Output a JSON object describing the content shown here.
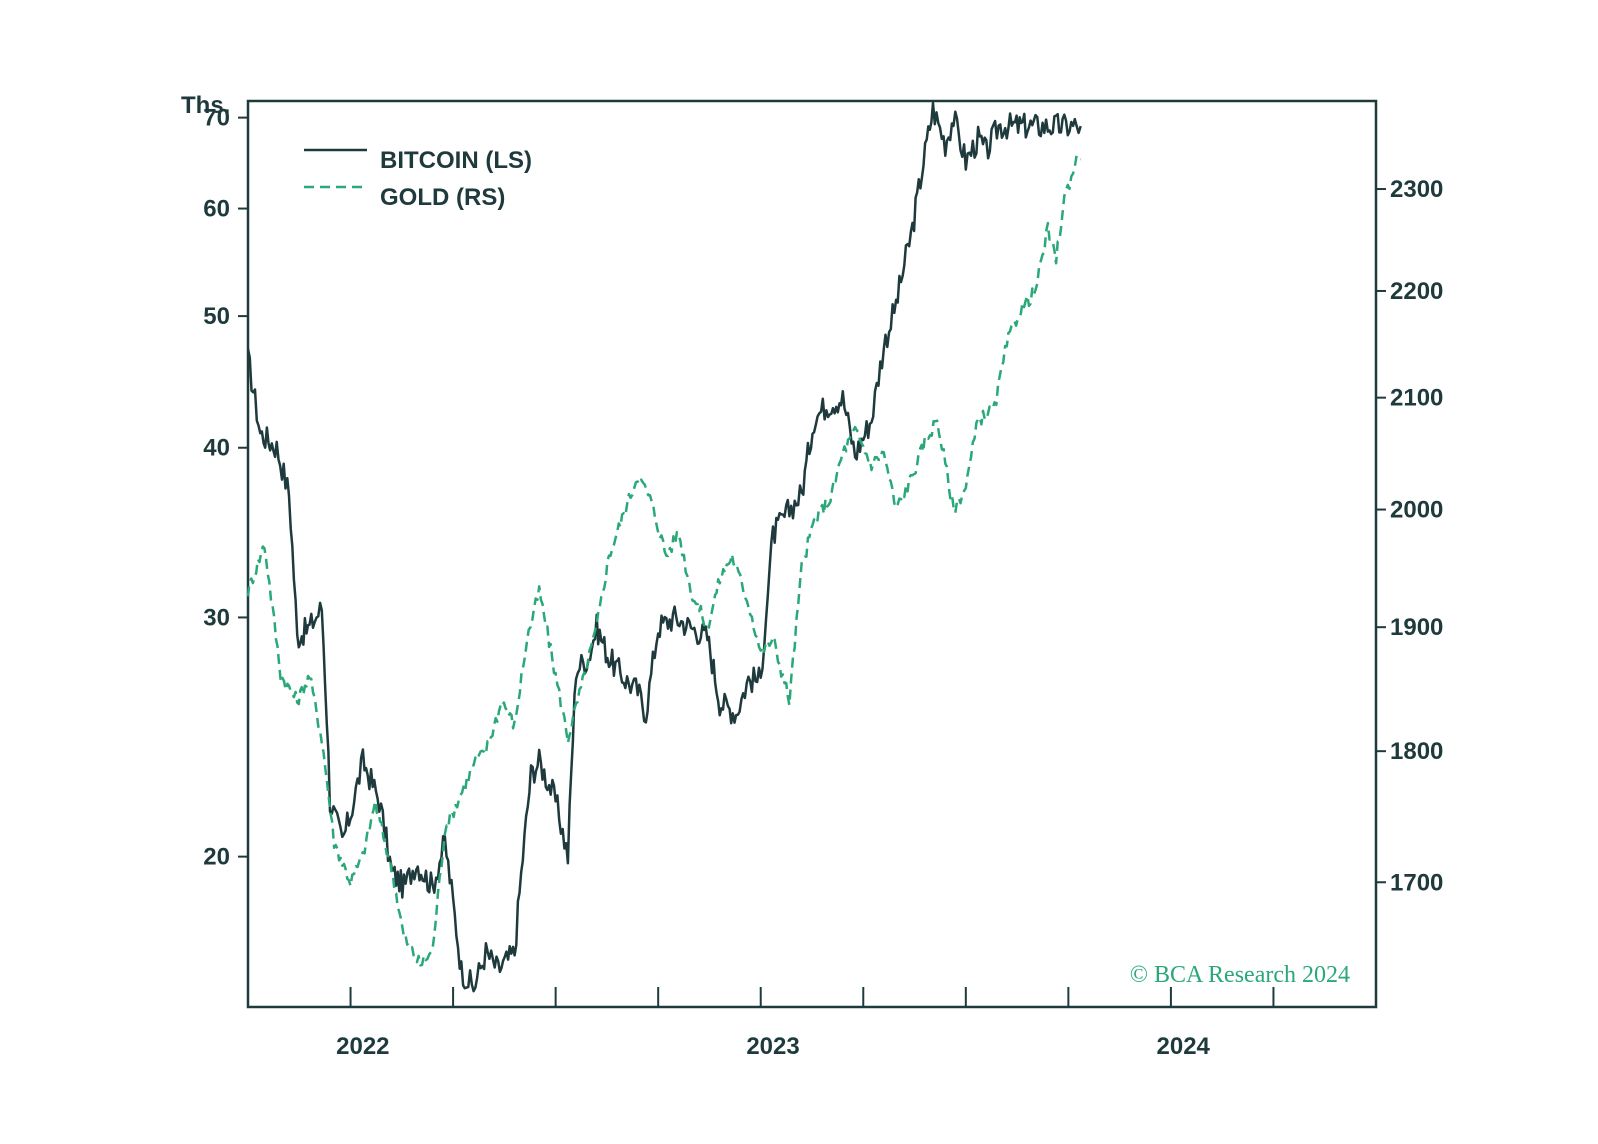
{
  "chart_data": {
    "type": "line",
    "title": "",
    "left_axis": {
      "unit_label": "Ths.",
      "scale": "log",
      "range": [
        15.5,
        72
      ],
      "ticks": [
        20,
        30,
        40,
        50,
        60,
        70
      ],
      "tick_labels": [
        "20",
        "30",
        "40",
        "50",
        "60",
        "70"
      ]
    },
    "right_axis": {
      "scale": "log",
      "range": [
        1610,
        2390
      ],
      "ticks": [
        1700,
        1800,
        1900,
        2000,
        2100,
        2200,
        2300
      ],
      "tick_labels": [
        "1700",
        "1800",
        "1900",
        "2000",
        "2100",
        "2200",
        "2300"
      ]
    },
    "x_axis": {
      "range": [
        2021.75,
        2024.5
      ],
      "minor_ticks": [
        2022.0,
        2022.25,
        2022.5,
        2022.75,
        2023.0,
        2023.25,
        2023.5,
        2023.75,
        2024.0,
        2024.25
      ],
      "labels": [
        {
          "value": 2022.03,
          "text": "2022"
        },
        {
          "value": 2023.03,
          "text": "2023"
        },
        {
          "value": 2024.03,
          "text": "2024"
        }
      ]
    },
    "series": [
      {
        "name": "BITCOIN (LS)",
        "axis": "left",
        "style": "solid",
        "color": "#1f3a3d",
        "x": [
          2021.75,
          2021.78,
          2021.82,
          2021.85,
          2021.87,
          2021.9,
          2021.93,
          2021.95,
          2021.98,
          2022.0,
          2022.03,
          2022.07,
          2022.1,
          2022.13,
          2022.16,
          2022.2,
          2022.23,
          2022.27,
          2022.3,
          2022.33,
          2022.36,
          2022.4,
          2022.42,
          2022.44,
          2022.46,
          2022.5,
          2022.53,
          2022.55,
          2022.58,
          2022.6,
          2022.63,
          2022.67,
          2022.7,
          2022.72,
          2022.75,
          2022.79,
          2022.83,
          2022.87,
          2022.9,
          2022.94,
          2022.97,
          2023.0,
          2023.03,
          2023.07,
          2023.1,
          2023.13,
          2023.16,
          2023.2,
          2023.23,
          2023.27,
          2023.3,
          2023.33,
          2023.37,
          2023.42,
          2023.45,
          2023.47,
          2023.5,
          2023.53,
          2023.55,
          2023.58,
          2023.62,
          2023.65,
          2023.67,
          2023.7,
          2023.72,
          2023.74,
          2023.77,
          2023.78
        ],
        "values": [
          46.5,
          41.0,
          40.0,
          37.0,
          29.0,
          29.5,
          30.5,
          22.0,
          20.5,
          21.5,
          23.5,
          22.0,
          19.5,
          19.0,
          19.8,
          19.0,
          20.5,
          16.5,
          16.0,
          17.0,
          16.5,
          17.0,
          20.0,
          23.0,
          23.5,
          22.0,
          20.0,
          27.5,
          28.0,
          29.5,
          28.0,
          27.0,
          26.5,
          25.5,
          29.5,
          30.0,
          29.5,
          29.0,
          26.0,
          25.5,
          27.0,
          27.0,
          34.5,
          36.0,
          37.0,
          42.0,
          43.0,
          43.5,
          39.5,
          42.0,
          47.5,
          51.0,
          58.0,
          71.0,
          67.0,
          70.0,
          65.0,
          67.5,
          66.0,
          69.0,
          69.0,
          69.0,
          69.0,
          69.0,
          69.0,
          69.0,
          69.0,
          69.0
        ]
      },
      {
        "name": "GOLD (RS)",
        "axis": "right",
        "style": "dashed",
        "color": "#2aa878",
        "x": [
          2021.75,
          2021.79,
          2021.83,
          2021.87,
          2021.9,
          2021.93,
          2021.96,
          2022.0,
          2022.03,
          2022.06,
          2022.1,
          2022.13,
          2022.17,
          2022.2,
          2022.23,
          2022.26,
          2022.3,
          2022.33,
          2022.37,
          2022.4,
          2022.43,
          2022.46,
          2022.5,
          2022.53,
          2022.57,
          2022.6,
          2022.63,
          2022.67,
          2022.7,
          2022.73,
          2022.77,
          2022.8,
          2022.83,
          2022.87,
          2022.9,
          2022.93,
          2022.97,
          2023.0,
          2023.03,
          2023.07,
          2023.1,
          2023.13,
          2023.17,
          2023.2,
          2023.23,
          2023.27,
          2023.3,
          2023.33,
          2023.37,
          2023.4,
          2023.43,
          2023.47,
          2023.5,
          2023.53,
          2023.57,
          2023.6,
          2023.63,
          2023.67,
          2023.7,
          2023.72,
          2023.74,
          2023.77,
          2023.78
        ],
        "values": [
          1930,
          1970,
          1860,
          1840,
          1860,
          1810,
          1730,
          1700,
          1720,
          1760,
          1710,
          1660,
          1640,
          1650,
          1740,
          1760,
          1790,
          1800,
          1840,
          1820,
          1890,
          1930,
          1860,
          1810,
          1860,
          1900,
          1960,
          2000,
          2030,
          2010,
          1960,
          1980,
          1930,
          1900,
          1940,
          1960,
          1920,
          1880,
          1890,
          1840,
          1950,
          1990,
          2010,
          2050,
          2070,
          2040,
          2050,
          2000,
          2030,
          2060,
          2080,
          2000,
          2020,
          2080,
          2090,
          2150,
          2180,
          2200,
          2260,
          2230,
          2290,
          2330,
          2330
        ]
      }
    ],
    "legend": {
      "position": "top-left",
      "entries": [
        "BITCOIN (LS)",
        "GOLD (RS)"
      ]
    },
    "grid": false
  },
  "colors": {
    "frame": "#1f3a3d",
    "bitcoin": "#1f3a3d",
    "gold": "#2aa878",
    "copyright": "#2aa878"
  },
  "credit": "© BCA Research 2024"
}
